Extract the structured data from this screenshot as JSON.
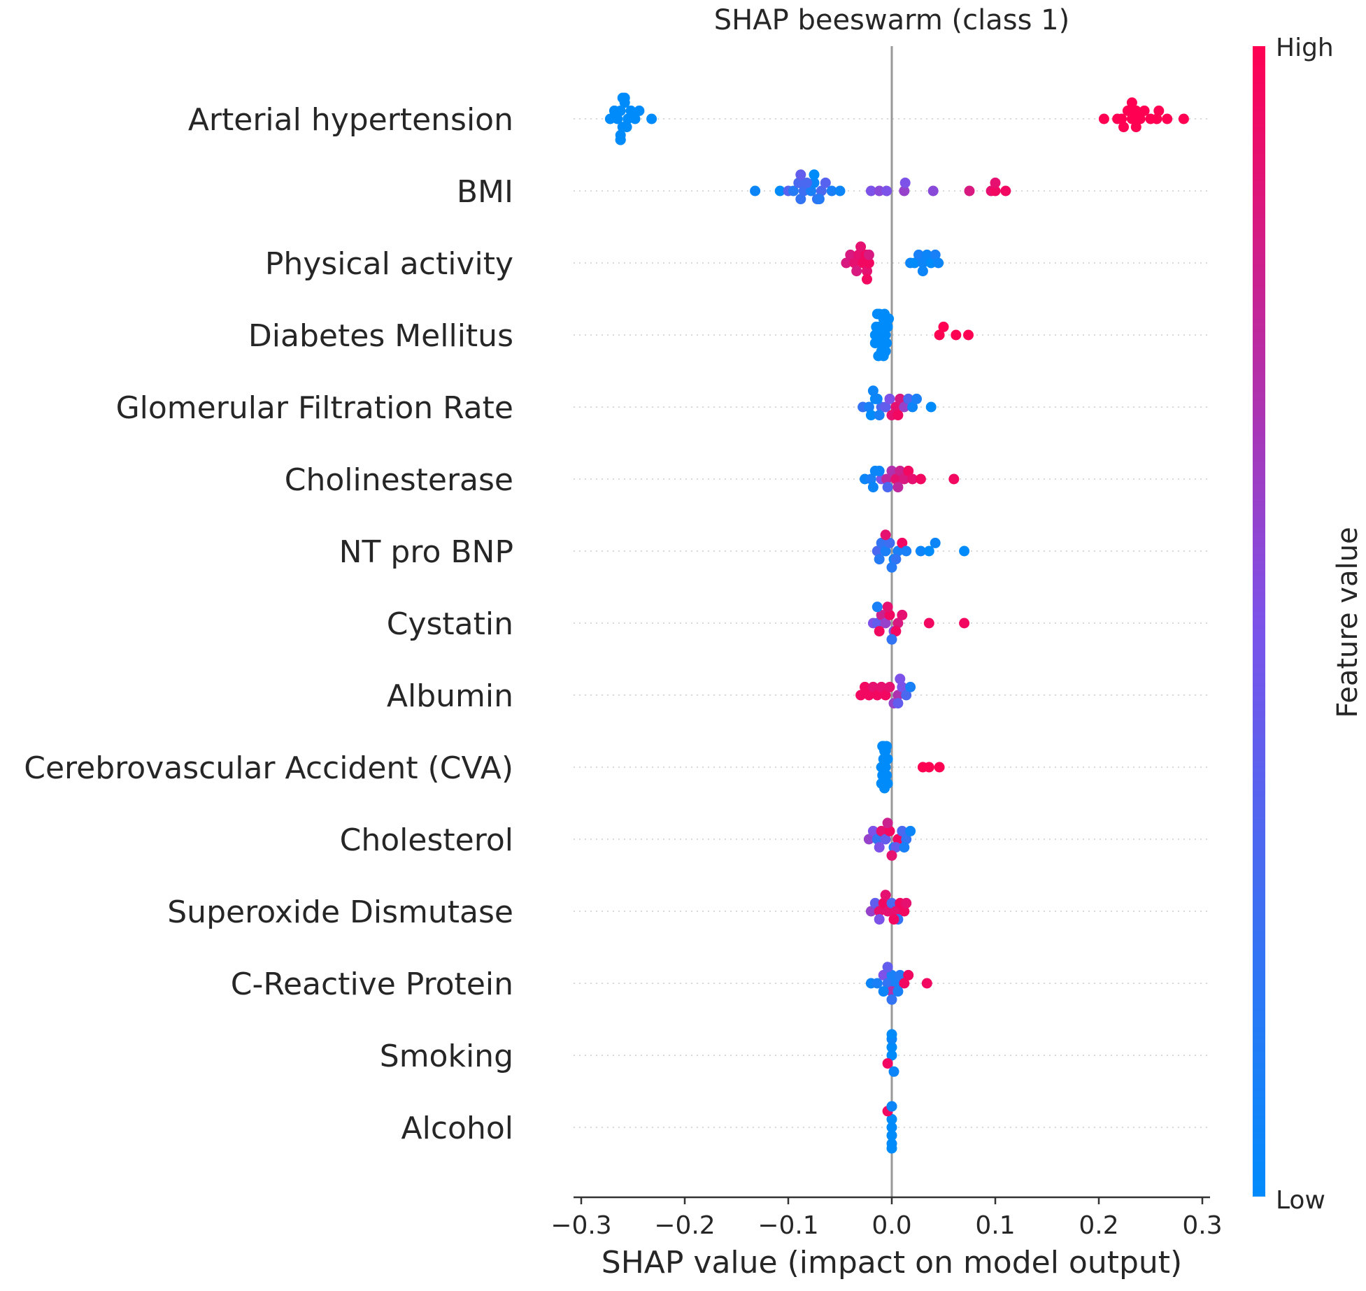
{
  "chart_data": {
    "type": "scatter",
    "subtype": "shap-beeswarm",
    "title": "SHAP beeswarm (class 1)",
    "xlabel": "SHAP value (impact on model output)",
    "ylabel": "",
    "xlim": [
      -0.31,
      0.31
    ],
    "xticks": [
      -0.3,
      -0.2,
      -0.1,
      0.0,
      0.1,
      0.2,
      0.3
    ],
    "xtick_labels": [
      "−0.3",
      "−0.2",
      "−0.1",
      "0.0",
      "0.1",
      "0.2",
      "0.3"
    ],
    "grid": "dotted horizontal row lines",
    "zero_line": 0.0,
    "colorbar": {
      "title": "Feature value",
      "high_label": "High",
      "low_label": "Low",
      "low_color": "#008bfb",
      "mid_color": "#7c52e9",
      "high_color": "#ff0052"
    },
    "features": [
      {
        "name": "Arterial hypertension",
        "points": [
          [
            -0.272,
            0
          ],
          [
            -0.268,
            0
          ],
          [
            -0.265,
            0
          ],
          [
            -0.262,
            0
          ],
          [
            -0.26,
            0
          ],
          [
            -0.258,
            0
          ],
          [
            -0.255,
            0
          ],
          [
            -0.252,
            0
          ],
          [
            -0.248,
            0
          ],
          [
            -0.244,
            0
          ],
          [
            -0.232,
            0
          ],
          [
            -0.262,
            0
          ],
          [
            -0.258,
            0
          ],
          [
            -0.256,
            0
          ],
          [
            -0.262,
            0
          ],
          [
            -0.26,
            0
          ],
          [
            -0.262,
            0
          ],
          [
            0.205,
            1
          ],
          [
            0.218,
            1
          ],
          [
            0.222,
            1
          ],
          [
            0.228,
            1
          ],
          [
            0.232,
            1
          ],
          [
            0.236,
            1
          ],
          [
            0.24,
            1
          ],
          [
            0.244,
            1
          ],
          [
            0.25,
            1
          ],
          [
            0.256,
            1
          ],
          [
            0.266,
            1
          ],
          [
            0.282,
            1
          ],
          [
            0.224,
            1
          ],
          [
            0.236,
            1
          ],
          [
            0.258,
            1
          ],
          [
            0.232,
            1
          ]
        ]
      },
      {
        "name": "BMI",
        "points": [
          [
            -0.132,
            0.05
          ],
          [
            -0.108,
            0.0
          ],
          [
            -0.1,
            0.35
          ],
          [
            -0.095,
            0.15
          ],
          [
            -0.09,
            0.3
          ],
          [
            -0.088,
            0.2
          ],
          [
            -0.085,
            0.25
          ],
          [
            -0.078,
            0.1
          ],
          [
            -0.075,
            0.05
          ],
          [
            -0.072,
            0.2
          ],
          [
            -0.068,
            0.3
          ],
          [
            -0.064,
            0.35
          ],
          [
            -0.058,
            0.1
          ],
          [
            -0.05,
            0.05
          ],
          [
            -0.082,
            0.3
          ],
          [
            -0.07,
            0.15
          ],
          [
            -0.075,
            0.0
          ],
          [
            -0.088,
            0.4
          ],
          [
            -0.02,
            0.5
          ],
          [
            -0.012,
            0.55
          ],
          [
            -0.005,
            0.5
          ],
          [
            0.012,
            0.6
          ],
          [
            0.013,
            0.5
          ],
          [
            0.04,
            0.55
          ],
          [
            0.075,
            0.85
          ],
          [
            0.096,
            0.9
          ],
          [
            0.1,
            0.95
          ],
          [
            0.11,
            0.95
          ],
          [
            0.1,
            0.9
          ]
        ]
      },
      {
        "name": "Physical activity",
        "points": [
          [
            -0.044,
            0.85
          ],
          [
            -0.04,
            0.85
          ],
          [
            -0.036,
            0.9
          ],
          [
            -0.032,
            0.9
          ],
          [
            -0.028,
            0.95
          ],
          [
            -0.025,
            0.95
          ],
          [
            -0.024,
            0.9
          ],
          [
            -0.022,
            0.95
          ],
          [
            -0.022,
            0.85
          ],
          [
            -0.03,
            0.9
          ],
          [
            -0.034,
            0.85
          ],
          [
            -0.024,
            0.95
          ],
          [
            0.018,
            0.05
          ],
          [
            0.022,
            0.0
          ],
          [
            0.026,
            0.1
          ],
          [
            0.03,
            0.05
          ],
          [
            0.034,
            0.05
          ],
          [
            0.038,
            0.0
          ],
          [
            0.042,
            0.1
          ],
          [
            0.045,
            0.05
          ],
          [
            0.03,
            0.05
          ]
        ]
      },
      {
        "name": "Diabetes Mellitus",
        "points": [
          [
            -0.016,
            0
          ],
          [
            -0.014,
            0
          ],
          [
            -0.012,
            0
          ],
          [
            -0.01,
            0
          ],
          [
            -0.008,
            0
          ],
          [
            -0.006,
            0
          ],
          [
            -0.004,
            0
          ],
          [
            -0.015,
            0
          ],
          [
            -0.01,
            0
          ],
          [
            -0.007,
            0
          ],
          [
            -0.005,
            0
          ],
          [
            -0.013,
            0
          ],
          [
            -0.003,
            0
          ],
          [
            -0.014,
            0
          ],
          [
            -0.008,
            0
          ],
          [
            -0.012,
            0
          ],
          [
            -0.006,
            0
          ],
          [
            -0.016,
            0
          ],
          [
            0.046,
            1
          ],
          [
            0.05,
            1
          ],
          [
            0.062,
            1
          ],
          [
            0.074,
            1
          ]
        ]
      },
      {
        "name": "Glomerular Filtration Rate",
        "points": [
          [
            -0.028,
            0.2
          ],
          [
            -0.022,
            0.1
          ],
          [
            -0.016,
            0.0
          ],
          [
            -0.01,
            0.3
          ],
          [
            -0.02,
            0.0
          ],
          [
            -0.014,
            0.05
          ],
          [
            -0.006,
            0.4
          ],
          [
            -0.002,
            0.5
          ],
          [
            0.004,
            0.9
          ],
          [
            0.008,
            0.85
          ],
          [
            0.012,
            0.6
          ],
          [
            0.016,
            0.3
          ],
          [
            0.02,
            0.05
          ],
          [
            0.024,
            0.1
          ],
          [
            0.038,
            0.0
          ],
          [
            -0.012,
            0.1
          ],
          [
            -0.018,
            0.05
          ],
          [
            0.0,
            0.9
          ],
          [
            0.006,
            0.95
          ]
        ]
      },
      {
        "name": "Cholinesterase",
        "points": [
          [
            -0.026,
            0.05
          ],
          [
            -0.02,
            0.1
          ],
          [
            -0.016,
            0.05
          ],
          [
            -0.01,
            0.5
          ],
          [
            -0.005,
            0.75
          ],
          [
            0.0,
            0.7
          ],
          [
            0.004,
            0.9
          ],
          [
            0.008,
            0.8
          ],
          [
            0.012,
            0.85
          ],
          [
            0.016,
            0.95
          ],
          [
            0.02,
            0.9
          ],
          [
            0.028,
            0.95
          ],
          [
            0.06,
            0.95
          ],
          [
            -0.012,
            0.05
          ],
          [
            -0.004,
            0.3
          ],
          [
            0.006,
            0.75
          ],
          [
            -0.018,
            0.05
          ]
        ]
      },
      {
        "name": "NT pro BNP",
        "points": [
          [
            -0.014,
            0.3
          ],
          [
            -0.01,
            0.2
          ],
          [
            -0.006,
            0.1
          ],
          [
            -0.002,
            0.25
          ],
          [
            0.002,
            0.05
          ],
          [
            0.006,
            0.1
          ],
          [
            0.01,
            0.95
          ],
          [
            0.014,
            0.1
          ],
          [
            0.028,
            0.05
          ],
          [
            0.036,
            0.0
          ],
          [
            0.042,
            0.05
          ],
          [
            0.07,
            0.0
          ],
          [
            -0.012,
            0.15
          ],
          [
            -0.006,
            0.9
          ],
          [
            0.004,
            0.2
          ],
          [
            0.0,
            0.15
          ]
        ]
      },
      {
        "name": "Cystatin",
        "points": [
          [
            -0.018,
            0.5
          ],
          [
            -0.014,
            0.4
          ],
          [
            -0.01,
            0.8
          ],
          [
            -0.006,
            0.6
          ],
          [
            -0.002,
            0.95
          ],
          [
            0.002,
            0.55
          ],
          [
            0.006,
            0.85
          ],
          [
            0.01,
            0.9
          ],
          [
            -0.012,
            0.95
          ],
          [
            -0.004,
            0.9
          ],
          [
            0.004,
            0.95
          ],
          [
            0.036,
            0.95
          ],
          [
            0.07,
            0.95
          ],
          [
            -0.014,
            0.1
          ],
          [
            0.0,
            0.2
          ]
        ]
      },
      {
        "name": "Albumin",
        "points": [
          [
            -0.03,
            0.95
          ],
          [
            -0.026,
            0.95
          ],
          [
            -0.022,
            0.95
          ],
          [
            -0.018,
            0.9
          ],
          [
            -0.014,
            0.95
          ],
          [
            -0.01,
            0.9
          ],
          [
            -0.006,
            0.95
          ],
          [
            -0.002,
            0.9
          ],
          [
            0.002,
            0.6
          ],
          [
            0.006,
            0.7
          ],
          [
            0.01,
            0.5
          ],
          [
            0.014,
            0.3
          ],
          [
            0.018,
            0.1
          ],
          [
            0.006,
            0.4
          ],
          [
            0.008,
            0.5
          ]
        ]
      },
      {
        "name": "Cerebrovascular Accident (CVA)",
        "points": [
          [
            -0.01,
            0
          ],
          [
            -0.008,
            0
          ],
          [
            -0.006,
            0
          ],
          [
            -0.004,
            0
          ],
          [
            -0.009,
            0
          ],
          [
            -0.007,
            0
          ],
          [
            -0.005,
            0
          ],
          [
            -0.01,
            0
          ],
          [
            -0.006,
            0
          ],
          [
            -0.004,
            0
          ],
          [
            -0.008,
            0
          ],
          [
            -0.005,
            0
          ],
          [
            -0.007,
            0
          ],
          [
            -0.009,
            0
          ],
          [
            0.03,
            1
          ],
          [
            0.036,
            1
          ],
          [
            0.046,
            1
          ]
        ]
      },
      {
        "name": "Cholesterol",
        "points": [
          [
            -0.022,
            0.6
          ],
          [
            -0.018,
            0.5
          ],
          [
            -0.014,
            0.2
          ],
          [
            -0.01,
            0.9
          ],
          [
            -0.006,
            0.4
          ],
          [
            -0.002,
            0.95
          ],
          [
            0.002,
            0.1
          ],
          [
            0.006,
            0.95
          ],
          [
            0.01,
            0.3
          ],
          [
            0.014,
            0.2
          ],
          [
            0.018,
            0.05
          ],
          [
            -0.012,
            0.5
          ],
          [
            -0.004,
            0.8
          ],
          [
            0.004,
            0.4
          ],
          [
            0.012,
            0.1
          ],
          [
            0.0,
            0.9
          ]
        ]
      },
      {
        "name": "Superoxide Dismutase",
        "points": [
          [
            -0.02,
            0.6
          ],
          [
            -0.016,
            0.4
          ],
          [
            -0.012,
            0.9
          ],
          [
            -0.008,
            0.95
          ],
          [
            -0.004,
            0.9
          ],
          [
            0.0,
            0.3
          ],
          [
            0.004,
            0.9
          ],
          [
            0.008,
            0.95
          ],
          [
            0.012,
            0.95
          ],
          [
            0.014,
            0.9
          ],
          [
            -0.012,
            0.5
          ],
          [
            0.006,
            0.2
          ],
          [
            0.002,
            0.95
          ],
          [
            -0.006,
            0.9
          ]
        ]
      },
      {
        "name": "C-Reactive Protein",
        "points": [
          [
            -0.02,
            0.05
          ],
          [
            -0.014,
            0.1
          ],
          [
            -0.008,
            0.5
          ],
          [
            -0.004,
            0.2
          ],
          [
            0.0,
            0.1
          ],
          [
            0.004,
            0.1
          ],
          [
            0.008,
            0.15
          ],
          [
            0.012,
            0.95
          ],
          [
            0.016,
            0.95
          ],
          [
            0.034,
            0.95
          ],
          [
            0.0,
            0.7
          ],
          [
            -0.004,
            0.4
          ],
          [
            0.0,
            0.2
          ],
          [
            0.006,
            0.1
          ],
          [
            -0.008,
            0.05
          ]
        ]
      },
      {
        "name": "Smoking",
        "points": [
          [
            0.0,
            0.0
          ],
          [
            0.0,
            0.0
          ],
          [
            -0.004,
            0.95
          ],
          [
            0.0,
            0.05
          ],
          [
            0.002,
            0.05
          ],
          [
            0.0,
            0.0
          ]
        ]
      },
      {
        "name": "Alcohol",
        "points": [
          [
            0.0,
            0.0
          ],
          [
            0.0,
            0.0
          ],
          [
            0.0,
            0.0
          ],
          [
            -0.004,
            0.95
          ],
          [
            0.0,
            0.0
          ],
          [
            0.0,
            0.0
          ],
          [
            0.0,
            0.0
          ],
          [
            0.0,
            0.05
          ]
        ]
      }
    ]
  }
}
